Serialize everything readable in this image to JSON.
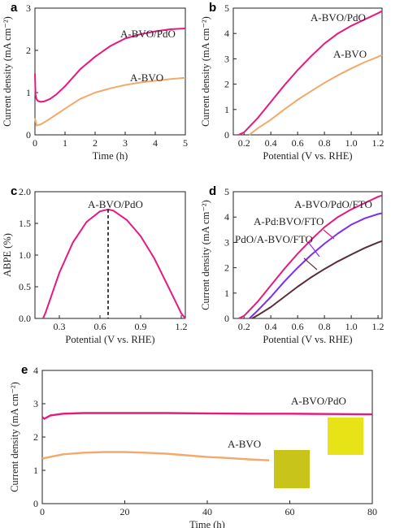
{
  "chart_data": [
    {
      "panel": "a",
      "type": "line",
      "xlabel": "Time (h)",
      "ylabel": "Current density (mA cm⁻²)",
      "xlim": [
        0,
        5
      ],
      "ylim": [
        0,
        3
      ],
      "xticks": [
        0,
        1,
        2,
        3,
        4,
        5
      ],
      "yticks": [
        0,
        1,
        2,
        3
      ],
      "series": [
        {
          "name": "A-BVO/PdO",
          "color": "#e6197f",
          "x": [
            0,
            0.02,
            0.05,
            0.1,
            0.2,
            0.3,
            0.5,
            0.7,
            1.0,
            1.5,
            2.0,
            2.5,
            3.0,
            3.5,
            4.0,
            4.5,
            5.0
          ],
          "y": [
            1.45,
            0.95,
            0.85,
            0.8,
            0.78,
            0.79,
            0.85,
            0.95,
            1.15,
            1.55,
            1.85,
            2.1,
            2.28,
            2.38,
            2.45,
            2.5,
            2.52
          ]
        },
        {
          "name": "A-BVO",
          "color": "#f4a86a",
          "x": [
            0,
            0.05,
            0.2,
            0.5,
            1.0,
            1.5,
            2.0,
            2.5,
            3.0,
            3.5,
            4.0,
            4.5,
            5.0
          ],
          "y": [
            0.4,
            0.22,
            0.25,
            0.38,
            0.62,
            0.85,
            1.0,
            1.1,
            1.18,
            1.24,
            1.28,
            1.32,
            1.35
          ]
        }
      ]
    },
    {
      "panel": "b",
      "type": "line",
      "xlabel": "Potential (V vs. RHE)",
      "ylabel": "Current density (mA cm⁻²)",
      "xlim": [
        0.12,
        1.23
      ],
      "ylim": [
        0,
        5
      ],
      "xticks": [
        0.2,
        0.4,
        0.6,
        0.8,
        1.0,
        1.2
      ],
      "yticks": [
        0,
        1,
        2,
        3,
        4,
        5
      ],
      "series": [
        {
          "name": "A-BVO/PdO",
          "color": "#e6197f",
          "x": [
            0.16,
            0.2,
            0.3,
            0.4,
            0.5,
            0.6,
            0.7,
            0.8,
            0.9,
            1.0,
            1.1,
            1.2,
            1.23
          ],
          "y": [
            0.0,
            0.1,
            0.65,
            1.3,
            1.95,
            2.55,
            3.1,
            3.6,
            4.0,
            4.3,
            4.55,
            4.8,
            4.88
          ]
        },
        {
          "name": "A-BVO",
          "color": "#f4a86a",
          "x": [
            0.24,
            0.3,
            0.4,
            0.5,
            0.6,
            0.7,
            0.8,
            0.9,
            1.0,
            1.1,
            1.2,
            1.23
          ],
          "y": [
            0.0,
            0.25,
            0.6,
            1.0,
            1.38,
            1.72,
            2.05,
            2.35,
            2.62,
            2.87,
            3.08,
            3.15
          ]
        }
      ]
    },
    {
      "panel": "c",
      "type": "line",
      "xlabel": "Potential (V vs. RHE)",
      "ylabel": "ABPE (%)",
      "xlim": [
        0.12,
        1.23
      ],
      "ylim": [
        0,
        2.0
      ],
      "xticks": [
        0.3,
        0.6,
        0.9,
        1.2
      ],
      "yticks": [
        0.0,
        0.5,
        1.0,
        1.5,
        2.0
      ],
      "peak_x": 0.66,
      "series": [
        {
          "name": "A-BVO/PdO",
          "color": "#e6197f",
          "x": [
            0.18,
            0.2,
            0.3,
            0.4,
            0.5,
            0.6,
            0.66,
            0.7,
            0.8,
            0.9,
            1.0,
            1.1,
            1.2,
            1.23
          ],
          "y": [
            0.0,
            0.1,
            0.72,
            1.2,
            1.52,
            1.69,
            1.72,
            1.7,
            1.55,
            1.3,
            0.95,
            0.52,
            0.08,
            0.0
          ]
        }
      ]
    },
    {
      "panel": "d",
      "type": "line",
      "xlabel": "Potential (V vs. RHE)",
      "ylabel": "Current density (mA cm⁻²)",
      "xlim": [
        0.12,
        1.23
      ],
      "ylim": [
        0,
        5
      ],
      "xticks": [
        0.2,
        0.4,
        0.6,
        0.8,
        1.0,
        1.2
      ],
      "yticks": [
        0,
        1,
        2,
        3,
        4,
        5
      ],
      "series": [
        {
          "name": "A-BVO/PdO/FTO",
          "color": "#e6197f",
          "x": [
            0.16,
            0.2,
            0.3,
            0.4,
            0.5,
            0.6,
            0.7,
            0.8,
            0.9,
            1.0,
            1.1,
            1.2,
            1.23
          ],
          "y": [
            0.0,
            0.1,
            0.65,
            1.3,
            1.95,
            2.55,
            3.1,
            3.6,
            4.0,
            4.3,
            4.55,
            4.8,
            4.85
          ]
        },
        {
          "name": "A-Pd:BVO/FTO",
          "color": "#7b2ff0",
          "x": [
            0.24,
            0.3,
            0.4,
            0.5,
            0.6,
            0.7,
            0.8,
            0.9,
            1.0,
            1.1,
            1.2,
            1.23
          ],
          "y": [
            0.0,
            0.3,
            0.85,
            1.45,
            2.0,
            2.5,
            2.95,
            3.35,
            3.7,
            3.95,
            4.12,
            4.15
          ]
        },
        {
          "name": "PdO/A-BVO/FTO",
          "color": "#5a2d38",
          "x": [
            0.26,
            0.3,
            0.4,
            0.5,
            0.6,
            0.7,
            0.8,
            0.9,
            1.0,
            1.1,
            1.2,
            1.23
          ],
          "y": [
            0.0,
            0.12,
            0.45,
            0.85,
            1.25,
            1.62,
            1.95,
            2.25,
            2.52,
            2.78,
            3.0,
            3.05
          ]
        }
      ]
    },
    {
      "panel": "e",
      "type": "line",
      "xlabel": "Time (h)",
      "ylabel": "Current density (mA cm⁻²)",
      "xlim": [
        0,
        80
      ],
      "ylim": [
        0,
        4
      ],
      "xticks": [
        0,
        20,
        40,
        60,
        80
      ],
      "yticks": [
        0,
        1,
        2,
        3,
        4
      ],
      "series": [
        {
          "name": "A-BVO/PdO",
          "color": "#e6197f",
          "x": [
            0,
            0.5,
            2,
            5,
            10,
            20,
            30,
            40,
            50,
            60,
            70,
            80
          ],
          "y": [
            2.6,
            2.55,
            2.65,
            2.7,
            2.72,
            2.72,
            2.72,
            2.71,
            2.7,
            2.7,
            2.69,
            2.68
          ]
        },
        {
          "name": "A-BVO",
          "color": "#f4a86a",
          "x": [
            0,
            1,
            5,
            10,
            15,
            20,
            25,
            30,
            35,
            40,
            45,
            50,
            55
          ],
          "y": [
            1.35,
            1.38,
            1.48,
            1.53,
            1.55,
            1.55,
            1.53,
            1.5,
            1.45,
            1.4,
            1.37,
            1.33,
            1.3
          ]
        }
      ]
    }
  ],
  "panels": {
    "a": {
      "letter": "a",
      "labels": [
        "A-BVO/PdO",
        "A-BVO"
      ]
    },
    "b": {
      "letter": "b",
      "labels": [
        "A-BVO/PdO",
        "A-BVO"
      ]
    },
    "c": {
      "letter": "c",
      "labels": [
        "A-BVO/PdO"
      ]
    },
    "d": {
      "letter": "d",
      "labels": [
        "A-BVO/PdO/FTO",
        "A-Pd:BVO/FTO",
        "PdO/A-BVO/FTO"
      ]
    },
    "e": {
      "letter": "e",
      "labels": [
        "A-BVO/PdO",
        "A-BVO"
      ]
    }
  },
  "photo_colors": {
    "pdo_sample": "#e7e317",
    "bvo_sample": "#c9c41a"
  }
}
